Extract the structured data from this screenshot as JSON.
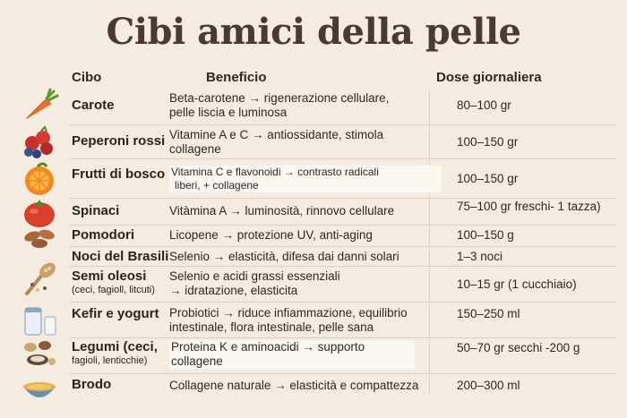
{
  "title": "Cibi amici della pelle",
  "headers": {
    "food": "Cibo",
    "benefit": "Beneficio",
    "dose": "Dose giornaliera"
  },
  "rows": [
    {
      "food": "Carote",
      "food_sub": "",
      "benefit": [
        "Beta-carotene → rigenerazione cellulare,",
        "pelle liscia e luminosa"
      ],
      "dose": "80–100 gr",
      "icon": "carrot-icon"
    },
    {
      "food": "Peperoni rossi",
      "food_sub": "",
      "benefit": [
        "Vitamine A e C → antiossidante, stimola",
        "collagene"
      ],
      "dose": "100–150 gr",
      "icon": "berries-icon"
    },
    {
      "food": "Frutti di bosco",
      "food_sub": "",
      "benefit": [
        "Vitamina C e flavonoidi → contrasto radicali",
        "liberi, + collagene"
      ],
      "dose": "100–150 gr",
      "icon": "orange-icon"
    },
    {
      "food": "Spinaci",
      "food_sub": "",
      "benefit": [
        "Vitàmina A → luminosità, rinnovo cellulare",
        ""
      ],
      "dose": "75–100 gr freschi- 1 tazza)",
      "icon": "tomato-icon"
    },
    {
      "food": "Pomodori",
      "food_sub": "",
      "benefit": [
        "Licopene → protezione UV, anti-aging",
        ""
      ],
      "dose": "100–150 g",
      "icon": "almonds-icon"
    },
    {
      "food": "Noci del Brasili",
      "food_sub": "",
      "benefit": [
        "Selenio → elasticità, difesa dai danni solari",
        ""
      ],
      "dose": "1–3 noci",
      "icon": "nuts-icon"
    },
    {
      "food": "Semi oleosi",
      "food_sub": "(ceci, fagioll, litcuti)",
      "benefit": [
        "Selenio e acidi grassi essenziali",
        "→ idratazione, elasticita"
      ],
      "dose": "10–15 gr (1 cucchiaio)",
      "icon": "seeds-spoon-icon"
    },
    {
      "food": "Kefir e yogurt",
      "food_sub": "",
      "benefit": [
        "Probiotici → riduce infiammazione, equilibrio",
        "intestinale, flora intestinale, pelle sana"
      ],
      "dose": "150–250 ml",
      "icon": "kefir-jar-icon"
    },
    {
      "food": "Legumi (ceci,",
      "food_sub": "fagioli, lenticchie)",
      "benefit": [
        "Proteina K e aminoacidi → supporto",
        "collagene"
      ],
      "dose": "50–70 gr secchi -200 g",
      "icon": "legumes-icon"
    },
    {
      "food": "Brodo",
      "food_sub": "",
      "benefit": [
        "Collagene naturale → elasticità e compattezza",
        ""
      ],
      "dose": "200–300 ml",
      "icon": "broth-bowl-icon"
    }
  ]
}
